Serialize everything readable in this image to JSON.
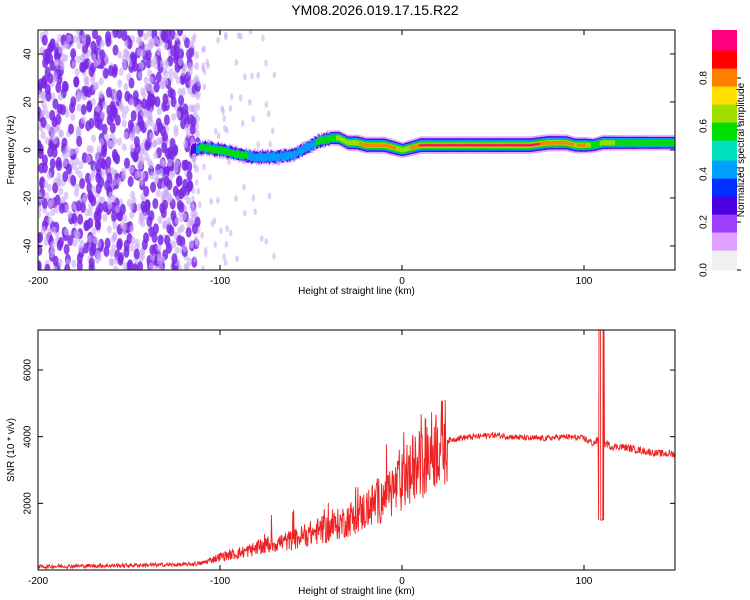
{
  "title": "YM08.2026.019.17.15.R22",
  "colors": {
    "background": "#ffffff",
    "snr_line": "#ee2222",
    "scatter_purple": "#7a28e6",
    "scatter_light": "#c9a8f5",
    "colormap": [
      "#f0f0f0",
      "#e0a0ff",
      "#a040ff",
      "#4a00e0",
      "#0030ff",
      "#00a0ff",
      "#00e0c0",
      "#00e000",
      "#a0e000",
      "#ffe000",
      "#ff8000",
      "#ff0000",
      "#ff0080"
    ]
  },
  "chart_data": [
    {
      "type": "heatmap",
      "title": "YM08.2026.019.17.15.R22",
      "xlabel": "Height of straight line (km)",
      "ylabel": "Frequency (Hz)",
      "xlim": [
        -200,
        150
      ],
      "ylim": [
        -50,
        50
      ],
      "x_ticks": [
        -200,
        -100,
        0,
        100
      ],
      "y_ticks": [
        40,
        20,
        0,
        -20,
        -40
      ],
      "noise_region_x": [
        -200,
        -115
      ],
      "ridge": {
        "description_points_x": [
          -115,
          -110,
          -100,
          -90,
          -80,
          -70,
          -60,
          -55,
          -50,
          -45,
          -40,
          -35,
          -30,
          -25,
          -20,
          -15,
          -10,
          -5,
          0,
          10,
          30,
          50,
          70,
          80,
          90,
          95,
          100,
          105,
          110,
          120,
          150
        ],
        "frequency_hz": [
          0,
          1,
          0,
          -2,
          -3,
          -3,
          -2,
          0,
          2,
          4,
          5,
          5,
          3,
          3,
          2,
          2,
          2,
          1,
          0,
          2,
          2,
          2,
          2,
          3,
          3,
          2,
          2,
          2,
          3,
          3,
          3
        ],
        "amplitude": [
          0.3,
          0.6,
          0.6,
          0.55,
          0.5,
          0.5,
          0.45,
          0.45,
          0.5,
          0.55,
          0.6,
          0.7,
          0.75,
          0.8,
          0.85,
          0.85,
          0.9,
          0.85,
          0.7,
          0.95,
          0.95,
          0.95,
          0.95,
          0.9,
          0.85,
          0.8,
          0.85,
          0.6,
          0.7,
          0.65,
          0.6
        ]
      },
      "colorbar": {
        "label": "Normalized spectral amplitude",
        "range": [
          0,
          1
        ],
        "ticks": [
          "0.0",
          "0.2",
          "0.4",
          "0.6",
          "0.8"
        ]
      }
    },
    {
      "type": "line",
      "xlabel": "Height of straight line (km)",
      "ylabel": "SNR (10 * v/v)",
      "xlim": [
        -200,
        150
      ],
      "ylim": [
        0,
        7200
      ],
      "x_ticks": [
        -200,
        -100,
        0,
        100
      ],
      "y_ticks": [
        2000,
        4000,
        6000
      ],
      "series": [
        {
          "name": "SNR",
          "x": [
            -200,
            -180,
            -160,
            -140,
            -120,
            -110,
            -100,
            -90,
            -80,
            -70,
            -60,
            -50,
            -40,
            -30,
            -20,
            -10,
            0,
            10,
            20,
            30,
            40,
            50,
            60,
            70,
            80,
            90,
            100,
            105,
            108,
            110,
            112,
            115,
            120,
            130,
            140,
            150
          ],
          "y": [
            100,
            120,
            130,
            150,
            160,
            200,
            400,
            500,
            650,
            800,
            900,
            1100,
            1250,
            1500,
            1800,
            2200,
            2600,
            3200,
            3800,
            3950,
            4000,
            4050,
            4000,
            3950,
            3950,
            4000,
            3950,
            3800,
            3900,
            3700,
            3800,
            3700,
            3700,
            3600,
            3500,
            3480
          ]
        }
      ]
    }
  ]
}
